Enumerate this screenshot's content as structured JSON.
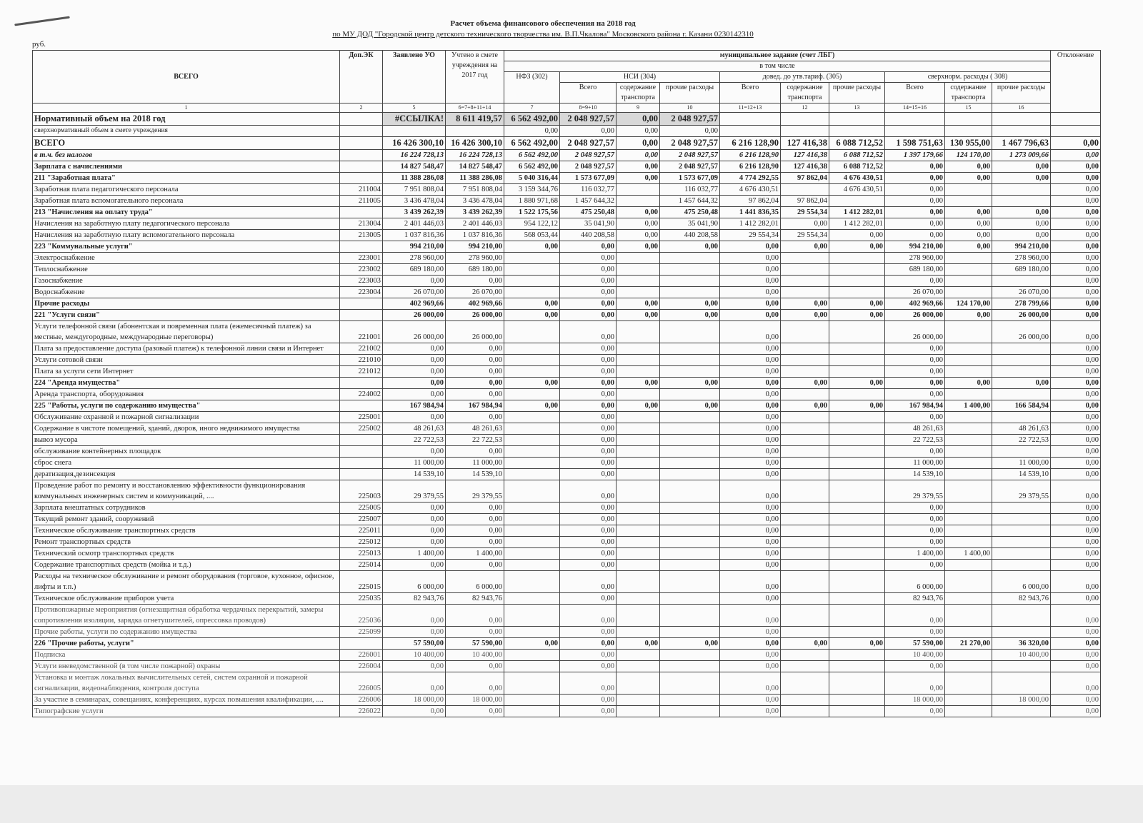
{
  "document": {
    "title": "Расчет объема финансового обеспечения на 2018 год",
    "subtitle": "по МУ ДОД   \"Городской центр детского технического творчества им. В.П.Чкалова\"  Московского  района г. Казани 0230142310",
    "unit": "руб."
  },
  "header": {
    "col_name": "ВСЕГО",
    "col_ek": "Доп.ЭК",
    "col_declared": "Заявлено УО",
    "col_counted": "Учтено в смете учреждения на 2017 год",
    "municipal": "муниципальное задание (счет ЛБГ)",
    "including": "в том числе",
    "deviation": "Отклонение",
    "nfz": "НФЗ (302)",
    "nsi": "НСИ (304)",
    "tariff": "довед. до утв.тариф. (305)",
    "over": "сверхнорм. расходы ( 308)",
    "total": "Всего",
    "transport": "содержание транспорта",
    "other": "прочие расходы",
    "col_numbers": [
      "1",
      "2",
      "5",
      "6=7+8+11+14",
      "7",
      "8=9+10",
      "9",
      "10",
      "11=12+13",
      "12",
      "13",
      "14=15+16",
      "15",
      "16"
    ]
  },
  "rows": [
    {
      "style": "big shade",
      "cells": [
        "Нормативный объем на 2018 год",
        "",
        "#ССЫЛКА!",
        "8 611 419,57",
        "6 562 492,00",
        "2 048 927,57",
        "0,00",
        "2 048 927,57",
        "",
        "",
        "",
        "",
        "",
        "",
        ""
      ]
    },
    {
      "style": "small",
      "cells": [
        "сверхнормативный объем в смете учреждения",
        "",
        "",
        "",
        "0,00",
        "0,00",
        "0,00",
        "0,00",
        "",
        "",
        "",
        "",
        "",
        "",
        ""
      ]
    },
    {
      "style": "big",
      "cells": [
        "ВСЕГО",
        "",
        "16 426 300,10",
        "16 426 300,10",
        "6 562 492,00",
        "2 048 927,57",
        "0,00",
        "2 048 927,57",
        "6 216 128,90",
        "127 416,38",
        "6 088 712,52",
        "1 598 751,63",
        "130 955,00",
        "1 467 796,63",
        "0,00"
      ]
    },
    {
      "style": "i",
      "cells": [
        "в т.ч. без налогов",
        "",
        "16 224 728,13",
        "16 224 728,13",
        "6 562 492,00",
        "2 048 927,57",
        "0,00",
        "2 048 927,57",
        "6 216 128,90",
        "127 416,38",
        "6 088 712,52",
        "1 397 179,66",
        "124 170,00",
        "1 273 009,66",
        "0,00"
      ]
    },
    {
      "style": "b",
      "cells": [
        "Зарплата с начислениями",
        "",
        "14 827 548,47",
        "14 827 548,47",
        "6 562 492,00",
        "2 048 927,57",
        "0,00",
        "2 048 927,57",
        "6 216 128,90",
        "127 416,38",
        "6 088 712,52",
        "0,00",
        "0,00",
        "0,00",
        "0,00"
      ]
    },
    {
      "style": "b",
      "cells": [
        "211 \"Заработная плата\"",
        "",
        "11 388 286,08",
        "11 388 286,08",
        "5 040 316,44",
        "1 573 677,09",
        "0,00",
        "1 573 677,09",
        "4 774 292,55",
        "97 862,04",
        "4 676 430,51",
        "0,00",
        "0,00",
        "0,00",
        "0,00"
      ]
    },
    {
      "style": "",
      "cells": [
        "Заработная плата педагогического персонала",
        "211004",
        "7 951 808,04",
        "7 951 808,04",
        "3 159 344,76",
        "116 032,77",
        "",
        "116 032,77",
        "4 676 430,51",
        "",
        "4 676 430,51",
        "0,00",
        "",
        "",
        "0,00"
      ]
    },
    {
      "style": "",
      "cells": [
        "Заработная плата вспомогательного персонала",
        "211005",
        "3 436 478,04",
        "3 436 478,04",
        "1 880 971,68",
        "1 457 644,32",
        "",
        "1 457 644,32",
        "97 862,04",
        "97 862,04",
        "",
        "0,00",
        "",
        "",
        "0,00"
      ]
    },
    {
      "style": "b",
      "cells": [
        "213 \"Начисления на оплату труда\"",
        "",
        "3 439 262,39",
        "3 439 262,39",
        "1 522 175,56",
        "475 250,48",
        "0,00",
        "475 250,48",
        "1 441 836,35",
        "29 554,34",
        "1 412 282,01",
        "0,00",
        "0,00",
        "0,00",
        "0,00"
      ]
    },
    {
      "style": "",
      "cells": [
        "Начисления на заработную плату педагогического персонала",
        "213004",
        "2 401 446,03",
        "2 401 446,03",
        "954 122,12",
        "35 041,90",
        "0,00",
        "35 041,90",
        "1 412 282,01",
        "0,00",
        "1 412 282,01",
        "0,00",
        "0,00",
        "0,00",
        "0,00"
      ]
    },
    {
      "style": "",
      "cells": [
        "Начисления на заработную плату вспомогательного персонала",
        "213005",
        "1 037 816,36",
        "1 037 816,36",
        "568 053,44",
        "440 208,58",
        "0,00",
        "440 208,58",
        "29 554,34",
        "29 554,34",
        "0,00",
        "0,00",
        "0,00",
        "0,00",
        "0,00"
      ]
    },
    {
      "style": "b",
      "cells": [
        "223 \"Коммунальные услуги\"",
        "",
        "994 210,00",
        "994 210,00",
        "0,00",
        "0,00",
        "0,00",
        "0,00",
        "0,00",
        "0,00",
        "0,00",
        "994 210,00",
        "0,00",
        "994 210,00",
        "0,00"
      ]
    },
    {
      "style": "",
      "cells": [
        "Электроснабжение",
        "223001",
        "278 960,00",
        "278 960,00",
        "",
        "0,00",
        "",
        "",
        "0,00",
        "",
        "",
        "278 960,00",
        "",
        "278 960,00",
        "0,00"
      ]
    },
    {
      "style": "",
      "cells": [
        "Теплоснабжение",
        "223002",
        "689 180,00",
        "689 180,00",
        "",
        "0,00",
        "",
        "",
        "0,00",
        "",
        "",
        "689 180,00",
        "",
        "689 180,00",
        "0,00"
      ]
    },
    {
      "style": "",
      "cells": [
        "Газоснабжение",
        "223003",
        "0,00",
        "0,00",
        "",
        "0,00",
        "",
        "",
        "0,00",
        "",
        "",
        "0,00",
        "",
        "",
        "0,00"
      ]
    },
    {
      "style": "",
      "cells": [
        "Водоснабжение",
        "223004",
        "26 070,00",
        "26 070,00",
        "",
        "0,00",
        "",
        "",
        "0,00",
        "",
        "",
        "26 070,00",
        "",
        "26 070,00",
        "0,00"
      ]
    },
    {
      "style": "b",
      "cells": [
        "Прочие расходы",
        "",
        "402 969,66",
        "402 969,66",
        "0,00",
        "0,00",
        "0,00",
        "0,00",
        "0,00",
        "0,00",
        "0,00",
        "402 969,66",
        "124 170,00",
        "278 799,66",
        "0,00"
      ]
    },
    {
      "style": "b",
      "cells": [
        "221 \"Услуги связи\"",
        "",
        "26 000,00",
        "26 000,00",
        "0,00",
        "0,00",
        "0,00",
        "0,00",
        "0,00",
        "0,00",
        "0,00",
        "26 000,00",
        "0,00",
        "26 000,00",
        "0,00"
      ]
    },
    {
      "style": "",
      "cells": [
        "Услуги телефонной связи (абонентская и повременная плата (ежемесячный платеж) за местные, междугородные, международные  переговоры)",
        "221001",
        "26 000,00",
        "26 000,00",
        "",
        "0,00",
        "",
        "",
        "0,00",
        "",
        "",
        "26 000,00",
        "",
        "26 000,00",
        "0,00"
      ]
    },
    {
      "style": "",
      "cells": [
        "Плата за предоставление доступа (разовый платеж) к телефонной линии связи и Интернет",
        "221002",
        "0,00",
        "0,00",
        "",
        "0,00",
        "",
        "",
        "0,00",
        "",
        "",
        "0,00",
        "",
        "",
        "0,00"
      ]
    },
    {
      "style": "",
      "cells": [
        "Услуги сотовой связи",
        "221010",
        "0,00",
        "0,00",
        "",
        "0,00",
        "",
        "",
        "0,00",
        "",
        "",
        "0,00",
        "",
        "",
        "0,00"
      ]
    },
    {
      "style": "",
      "cells": [
        "Плата за услуги сети Интернет",
        "221012",
        "0,00",
        "0,00",
        "",
        "0,00",
        "",
        "",
        "0,00",
        "",
        "",
        "0,00",
        "",
        "",
        "0,00"
      ]
    },
    {
      "style": "b",
      "cells": [
        "224 \"Аренда имущества\"",
        "",
        "0,00",
        "0,00",
        "0,00",
        "0,00",
        "0,00",
        "0,00",
        "0,00",
        "0,00",
        "0,00",
        "0,00",
        "0,00",
        "0,00",
        "0,00"
      ]
    },
    {
      "style": "",
      "cells": [
        "Аренда транспорта, оборудования",
        "224002",
        "0,00",
        "0,00",
        "",
        "0,00",
        "",
        "",
        "0,00",
        "",
        "",
        "0,00",
        "",
        "",
        "0,00"
      ]
    },
    {
      "style": "b",
      "cells": [
        "225 \"Работы, услуги по содержанию имущества\"",
        "",
        "167 984,94",
        "167 984,94",
        "0,00",
        "0,00",
        "0,00",
        "0,00",
        "0,00",
        "0,00",
        "0,00",
        "167 984,94",
        "1 400,00",
        "166 584,94",
        "0,00"
      ]
    },
    {
      "style": "",
      "cells": [
        "Обслуживание охранной и пожарной сигнализации",
        "225001",
        "0,00",
        "0,00",
        "",
        "0,00",
        "",
        "",
        "0,00",
        "",
        "",
        "0,00",
        "",
        "",
        "0,00"
      ]
    },
    {
      "style": "",
      "cells": [
        "Содержание в чистоте помещений, зданий, дворов, иного недвижимого имущества",
        "225002",
        "48 261,63",
        "48 261,63",
        "",
        "0,00",
        "",
        "",
        "0,00",
        "",
        "",
        "48 261,63",
        "",
        "48 261,63",
        "0,00"
      ]
    },
    {
      "style": "",
      "cells": [
        "вывоз мусора",
        "",
        "22 722,53",
        "22 722,53",
        "",
        "0,00",
        "",
        "",
        "0,00",
        "",
        "",
        "22 722,53",
        "",
        "22 722,53",
        "0,00"
      ]
    },
    {
      "style": "",
      "cells": [
        "обслуживание контейнерных площадок",
        "",
        "0,00",
        "0,00",
        "",
        "0,00",
        "",
        "",
        "0,00",
        "",
        "",
        "0,00",
        "",
        "",
        "0,00"
      ]
    },
    {
      "style": "",
      "cells": [
        "сброс снега",
        "",
        "11 000,00",
        "11 000,00",
        "",
        "0,00",
        "",
        "",
        "0,00",
        "",
        "",
        "11 000,00",
        "",
        "11 000,00",
        "0,00"
      ]
    },
    {
      "style": "",
      "cells": [
        "дератизация,дезинсекция",
        "",
        "14 539,10",
        "14 539,10",
        "",
        "0,00",
        "",
        "",
        "0,00",
        "",
        "",
        "14 539,10",
        "",
        "14 539,10",
        "0,00"
      ]
    },
    {
      "style": "",
      "cells": [
        "Проведение работ по ремонту и восстановлению эффективности функционирования коммунальных инженерных систем и коммуникаций, ....",
        "225003",
        "29 379,55",
        "29 379,55",
        "",
        "0,00",
        "",
        "",
        "0,00",
        "",
        "",
        "29 379,55",
        "",
        "29 379,55",
        "0,00"
      ]
    },
    {
      "style": "",
      "cells": [
        "Зарплата внештатных сотрудников",
        "225005",
        "0,00",
        "0,00",
        "",
        "0,00",
        "",
        "",
        "0,00",
        "",
        "",
        "0,00",
        "",
        "",
        "0,00"
      ]
    },
    {
      "style": "",
      "cells": [
        "Текущий ремонт зданий, сооружений",
        "225007",
        "0,00",
        "0,00",
        "",
        "0,00",
        "",
        "",
        "0,00",
        "",
        "",
        "0,00",
        "",
        "",
        "0,00"
      ]
    },
    {
      "style": "",
      "cells": [
        "Техническое обслуживание транспортных средств",
        "225011",
        "0,00",
        "0,00",
        "",
        "0,00",
        "",
        "",
        "0,00",
        "",
        "",
        "0,00",
        "",
        "",
        "0,00"
      ]
    },
    {
      "style": "",
      "cells": [
        "Ремонт транспортных средств",
        "225012",
        "0,00",
        "0,00",
        "",
        "0,00",
        "",
        "",
        "0,00",
        "",
        "",
        "0,00",
        "",
        "",
        "0,00"
      ]
    },
    {
      "style": "",
      "cells": [
        "Технический осмотр транспортных средств",
        "225013",
        "1 400,00",
        "1 400,00",
        "",
        "0,00",
        "",
        "",
        "0,00",
        "",
        "",
        "1 400,00",
        "1 400,00",
        "",
        "0,00"
      ]
    },
    {
      "style": "",
      "cells": [
        "Содержание транспортных средств (мойка и т.д.)",
        "225014",
        "0,00",
        "0,00",
        "",
        "0,00",
        "",
        "",
        "0,00",
        "",
        "",
        "0,00",
        "",
        "",
        "0,00"
      ]
    },
    {
      "style": "",
      "cells": [
        "Расходы на техническое обслуживание и ремонт оборудования (торговое, кухонное, офисное, лифты и т.п.)",
        "225015",
        "6 000,00",
        "6 000,00",
        "",
        "0,00",
        "",
        "",
        "0,00",
        "",
        "",
        "6 000,00",
        "",
        "6 000,00",
        "0,00"
      ]
    },
    {
      "style": "",
      "cells": [
        "Техническое обслуживание приборов учета",
        "225035",
        "82 943,76",
        "82 943,76",
        "",
        "0,00",
        "",
        "",
        "0,00",
        "",
        "",
        "82 943,76",
        "",
        "82 943,76",
        "0,00"
      ]
    },
    {
      "style": "faint",
      "cells": [
        "Противопожарные мероприятия (огнезащитная обработка чердачных перекрытий, замеры сопротивления изоляции, зарядка огнетушителей, опрессовка проводов)",
        "225036",
        "0,00",
        "0,00",
        "",
        "0,00",
        "",
        "",
        "0,00",
        "",
        "",
        "0,00",
        "",
        "",
        "0,00"
      ]
    },
    {
      "style": "faint",
      "cells": [
        "Прочие работы, услуги по содержанию имущества",
        "225099",
        "0,00",
        "0,00",
        "",
        "0,00",
        "",
        "",
        "0,00",
        "",
        "",
        "0,00",
        "",
        "",
        "0,00"
      ]
    },
    {
      "style": "b",
      "cells": [
        "226 \"Прочие работы, услуги\"",
        "",
        "57 590,00",
        "57 590,00",
        "0,00",
        "0,00",
        "0,00",
        "0,00",
        "0,00",
        "0,00",
        "0,00",
        "57 590,00",
        "21 270,00",
        "36 320,00",
        "0,00"
      ]
    },
    {
      "style": "faint",
      "cells": [
        "Подписка",
        "226001",
        "10 400,00",
        "10 400,00",
        "",
        "0,00",
        "",
        "",
        "0,00",
        "",
        "",
        "10 400,00",
        "",
        "10 400,00",
        "0,00"
      ]
    },
    {
      "style": "faint",
      "cells": [
        "Услуги вневедомственной (в том числе пожарной) охраны",
        "226004",
        "0,00",
        "0,00",
        "",
        "0,00",
        "",
        "",
        "0,00",
        "",
        "",
        "0,00",
        "",
        "",
        "0,00"
      ]
    },
    {
      "style": "faint",
      "cells": [
        "Установка и монтаж локальных вычислительных сетей, систем охранной и пожарной сигнализации, видеонаблюдения, контроля доступа",
        "226005",
        "0,00",
        "0,00",
        "",
        "0,00",
        "",
        "",
        "0,00",
        "",
        "",
        "0,00",
        "",
        "",
        "0,00"
      ]
    },
    {
      "style": "faint",
      "cells": [
        "За участие в семинарах, совещаниях, конференциях, курсах повышения квалификации, ....",
        "226006",
        "18 000,00",
        "18 000,00",
        "",
        "0,00",
        "",
        "",
        "0,00",
        "",
        "",
        "18 000,00",
        "",
        "18 000,00",
        "0,00"
      ]
    },
    {
      "style": "faint",
      "cells": [
        "Типографские услуги",
        "226022",
        "0,00",
        "0,00",
        "",
        "0,00",
        "",
        "",
        "0,00",
        "",
        "",
        "0,00",
        "",
        "",
        "0,00"
      ]
    }
  ]
}
